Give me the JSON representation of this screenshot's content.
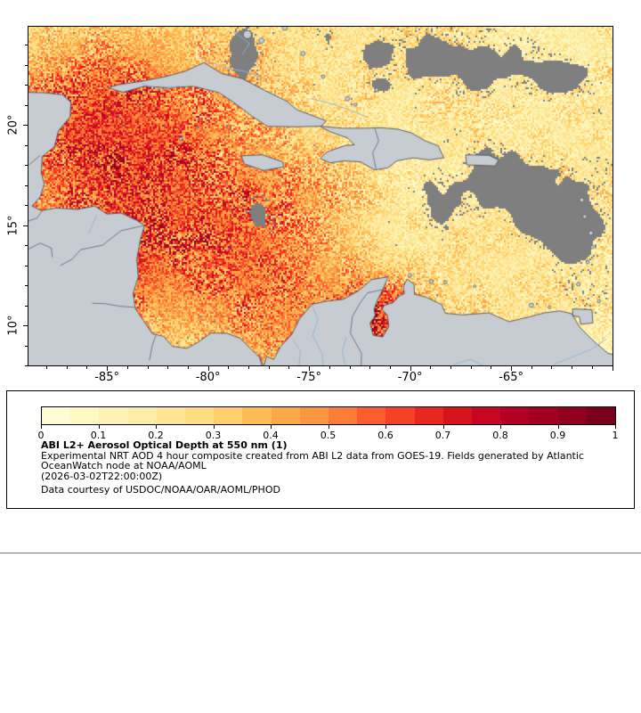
{
  "map": {
    "extent": {
      "lon_min": -88.88,
      "lon_max": -59.98,
      "lat_min": 8.0,
      "lat_max": 24.89
    },
    "x_ticks": [
      {
        "lon": -85,
        "label": "-85°"
      },
      {
        "lon": -80,
        "label": "-80°"
      },
      {
        "lon": -75,
        "label": "-75°"
      },
      {
        "lon": -70,
        "label": "-70°"
      },
      {
        "lon": -65,
        "label": "-65°"
      }
    ],
    "y_ticks": [
      {
        "lat": 20,
        "label": "20°"
      },
      {
        "lat": 15,
        "label": "15°"
      },
      {
        "lat": 10,
        "label": "10°"
      }
    ],
    "colors": {
      "land": "#c7ccd2",
      "coast": "#4d565f",
      "border": "#5a646e",
      "river": "#8fb4d5",
      "cloud": "#7f7f7f",
      "frame": "#000000",
      "background": "#ffffff"
    }
  },
  "colormap": {
    "min": 0,
    "max": 1,
    "stops": [
      "#ffffd9",
      "#fff7bc",
      "#feeaa1",
      "#fed976",
      "#feb24c",
      "#fd8d3c",
      "#fc4e2a",
      "#e31a1c",
      "#bd0026",
      "#99001f",
      "#6f001a"
    ]
  },
  "legend": {
    "ticks": [
      "0",
      "0.1",
      "0.2",
      "0.3",
      "0.4",
      "0.5",
      "0.6",
      "0.7",
      "0.8",
      "0.9",
      "1"
    ],
    "title": "ABI L2+ Aerosol Optical Depth at 550 nm (1)",
    "description_lines": [
      "Experimental NRT AOD 4 hour composite created from ABI L2 data from GOES-19. Fields generated by Atlantic",
      "OceanWatch node at NOAA/AOML"
    ],
    "timestamp": "(2026-03-02T22:00:00Z)",
    "courtesy": "Data courtesy of USDOC/NOAA/OAR/AOML/PHOD"
  }
}
